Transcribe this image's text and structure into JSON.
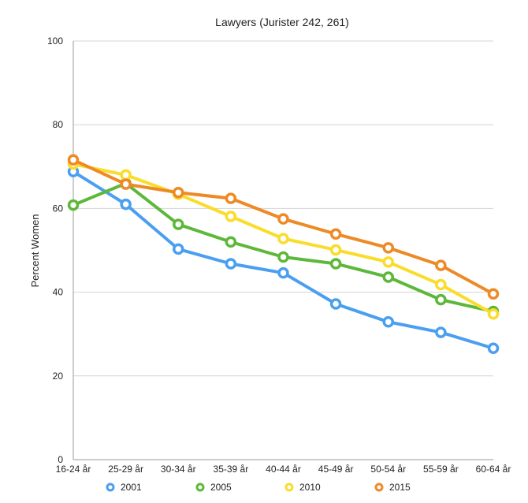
{
  "chart_data": {
    "type": "line",
    "title": "Lawyers (Jurister 242, 261)",
    "xlabel": "",
    "ylabel": "Percent Women",
    "categories": [
      "16-24 år",
      "25-29 år",
      "30-34 år",
      "35-39 år",
      "40-44 år",
      "45-49 år",
      "50-54 år",
      "55-59 år",
      "60-64 år"
    ],
    "ylim": [
      0,
      100
    ],
    "yticks": [
      0,
      20,
      40,
      60,
      80,
      100
    ],
    "grid": true,
    "legend": "bottom",
    "series": [
      {
        "name": "2001",
        "color": "#4a9ff0",
        "values": [
          68.8,
          61.0,
          50.3,
          46.8,
          44.6,
          37.2,
          32.9,
          30.4,
          26.6
        ]
      },
      {
        "name": "2005",
        "color": "#5db83a",
        "values": [
          60.8,
          66.0,
          56.2,
          52.0,
          48.4,
          46.8,
          43.6,
          38.2,
          35.4
        ]
      },
      {
        "name": "2010",
        "color": "#fadc2b",
        "values": [
          70.6,
          68.0,
          63.4,
          58.1,
          52.8,
          50.1,
          47.2,
          41.8,
          34.8
        ]
      },
      {
        "name": "2015",
        "color": "#ee8a26",
        "values": [
          71.6,
          65.8,
          63.8,
          62.4,
          57.5,
          53.9,
          50.6,
          46.4,
          39.6
        ]
      }
    ]
  }
}
